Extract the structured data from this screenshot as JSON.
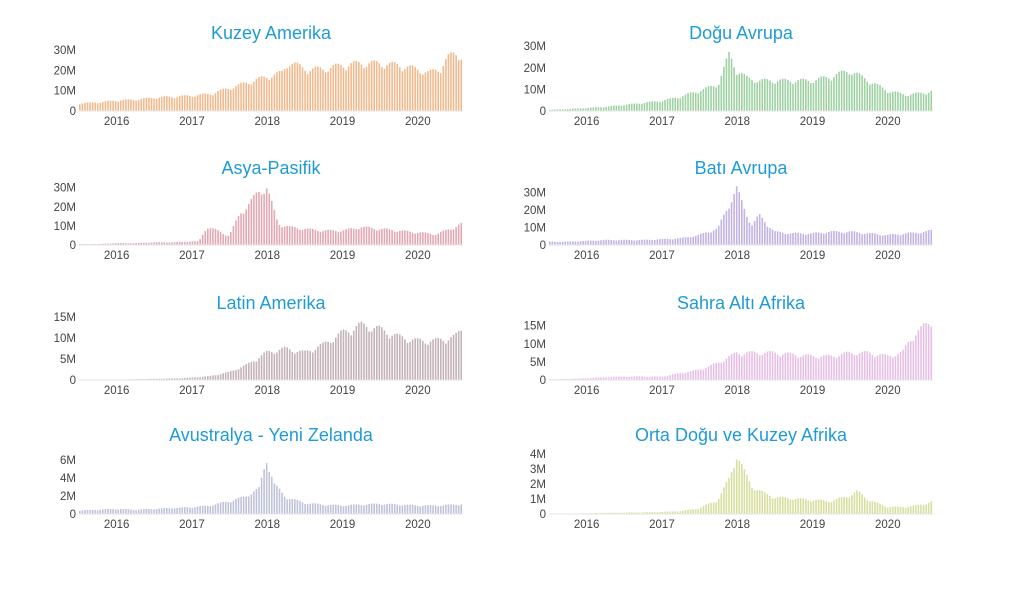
{
  "title_color": "#1f9bd7",
  "chart_data": [
    {
      "type": "bar",
      "title": "Kuzey Amerika",
      "color": "#f2b98c",
      "x_ticks": [
        "2016",
        "2017",
        "2018",
        "2019",
        "2020"
      ],
      "y_ticks": [
        "0",
        "10M",
        "20M",
        "30M"
      ],
      "ylim": [
        0,
        33
      ],
      "unit": "M",
      "x_range": [
        2015.5,
        2020.6
      ],
      "x": [
        2015.5,
        2015.75,
        2016.0,
        2016.25,
        2016.5,
        2016.75,
        2017.0,
        2017.25,
        2017.5,
        2017.75,
        2018.0,
        2018.2,
        2018.3,
        2018.5,
        2018.75,
        2019.0,
        2019.25,
        2019.5,
        2019.75,
        2020.0,
        2020.15,
        2020.3,
        2020.4,
        2020.5,
        2020.6
      ],
      "values": [
        4,
        4.5,
        5.5,
        6,
        7,
        7.5,
        8,
        9,
        12,
        15,
        18,
        20,
        26,
        22,
        22,
        24,
        25,
        25,
        24,
        22,
        20,
        22,
        28,
        30,
        29
      ]
    },
    {
      "type": "bar",
      "title": "Doğu Avrupa",
      "color": "#9fd1a3",
      "x_ticks": [
        "2016",
        "2017",
        "2018",
        "2019",
        "2020"
      ],
      "y_ticks": [
        "0",
        "10M",
        "20M",
        "30M"
      ],
      "ylim": [
        0,
        31
      ],
      "unit": "M",
      "x_range": [
        2015.5,
        2020.6
      ],
      "x": [
        2015.5,
        2015.75,
        2016.0,
        2016.25,
        2016.5,
        2016.75,
        2017.0,
        2017.25,
        2017.5,
        2017.75,
        2017.9,
        2018.0,
        2018.15,
        2018.3,
        2018.5,
        2018.75,
        2019.0,
        2019.25,
        2019.5,
        2019.65,
        2019.8,
        2020.0,
        2020.25,
        2020.5,
        2020.6
      ],
      "values": [
        0.5,
        1,
        1.5,
        2,
        3,
        4,
        5,
        7,
        10,
        13,
        28,
        20,
        16,
        15,
        15,
        15,
        15,
        17,
        20,
        17,
        14,
        10,
        8,
        9,
        10
      ]
    },
    {
      "type": "bar",
      "title": "Asya-Pasifik",
      "color": "#e3a8b2",
      "x_ticks": [
        "2016",
        "2017",
        "2018",
        "2019",
        "2020"
      ],
      "y_ticks": [
        "0",
        "10M",
        "20M",
        "30M"
      ],
      "ylim": [
        0,
        34
      ],
      "unit": "M",
      "x_range": [
        2015.5,
        2020.6
      ],
      "x": [
        2015.5,
        2015.75,
        2016.0,
        2016.25,
        2016.5,
        2016.75,
        2017.0,
        2017.1,
        2017.2,
        2017.35,
        2017.5,
        2017.65,
        2017.75,
        2017.9,
        2018.0,
        2018.15,
        2018.3,
        2018.5,
        2018.75,
        2019.0,
        2019.25,
        2019.5,
        2019.75,
        2020.0,
        2020.25,
        2020.5,
        2020.6
      ],
      "values": [
        0.5,
        0.5,
        1,
        1,
        1.5,
        1.5,
        2,
        2,
        10,
        8,
        5,
        18,
        22,
        30,
        32,
        12,
        10,
        9,
        8,
        8,
        10,
        9,
        8,
        7,
        6,
        10,
        12
      ]
    },
    {
      "type": "bar",
      "title": "Batı Avrupa",
      "color": "#c2b3e3",
      "x_ticks": [
        "2016",
        "2017",
        "2018",
        "2019",
        "2020"
      ],
      "y_ticks": [
        "0",
        "10M",
        "20M",
        "30M"
      ],
      "ylim": [
        0,
        37
      ],
      "unit": "M",
      "x_range": [
        2015.5,
        2020.6
      ],
      "x": [
        2015.5,
        2015.75,
        2016.0,
        2016.25,
        2016.5,
        2016.75,
        2017.0,
        2017.25,
        2017.5,
        2017.75,
        2017.9,
        2018.0,
        2018.1,
        2018.2,
        2018.3,
        2018.5,
        2018.75,
        2019.0,
        2019.25,
        2019.5,
        2019.75,
        2020.0,
        2020.25,
        2020.5,
        2020.6
      ],
      "values": [
        2,
        2,
        2.5,
        3,
        3,
        3,
        3.5,
        4,
        6,
        10,
        25,
        34,
        22,
        12,
        18,
        8,
        7,
        7,
        8,
        8,
        7,
        6,
        7,
        8,
        9
      ]
    },
    {
      "type": "bar",
      "title": "Latin Amerika",
      "color": "#c4b3b8",
      "x_ticks": [
        "2016",
        "2017",
        "2018",
        "2019",
        "2020"
      ],
      "y_ticks": [
        "0",
        "5M",
        "10M",
        "15M"
      ],
      "ylim": [
        0,
        16
      ],
      "unit": "M",
      "x_range": [
        2015.5,
        2020.6
      ],
      "x": [
        2015.5,
        2015.75,
        2016.0,
        2016.25,
        2016.5,
        2016.75,
        2017.0,
        2017.25,
        2017.5,
        2017.75,
        2018.0,
        2018.25,
        2018.5,
        2018.75,
        2019.0,
        2019.25,
        2019.5,
        2019.75,
        2020.0,
        2020.25,
        2020.5,
        2020.6
      ],
      "values": [
        0.1,
        0.1,
        0.1,
        0.2,
        0.3,
        0.4,
        0.6,
        1,
        2,
        4,
        7,
        8,
        7,
        9,
        12,
        14,
        13,
        11,
        10,
        10,
        11,
        13
      ]
    },
    {
      "type": "bar",
      "title": "Sahra Altı Afrika",
      "color": "#e7bfe6",
      "x_ticks": [
        "2016",
        "2017",
        "2018",
        "2019",
        "2020"
      ],
      "y_ticks": [
        "0",
        "5M",
        "10M",
        "15M"
      ],
      "ylim": [
        0,
        18.5
      ],
      "unit": "M",
      "x_range": [
        2015.5,
        2020.6
      ],
      "x": [
        2015.5,
        2015.75,
        2016.0,
        2016.25,
        2016.5,
        2016.75,
        2017.0,
        2017.25,
        2017.5,
        2017.75,
        2018.0,
        2018.25,
        2018.5,
        2018.75,
        2019.0,
        2019.25,
        2019.5,
        2019.75,
        2020.0,
        2020.2,
        2020.3,
        2020.45,
        2020.6
      ],
      "values": [
        0.2,
        0.3,
        0.5,
        0.8,
        1,
        1,
        1,
        2,
        3,
        5,
        8,
        8,
        8,
        7.5,
        7,
        7,
        8,
        8,
        7,
        8,
        12,
        15,
        18
      ]
    },
    {
      "type": "bar",
      "title": "Avustralya - Yeni Zelanda",
      "color": "#bfc3d8",
      "x_ticks": [
        "2016",
        "2017",
        "2018",
        "2019",
        "2020"
      ],
      "y_ticks": [
        "0",
        "2M",
        "4M",
        "6M"
      ],
      "ylim": [
        0,
        7.3
      ],
      "unit": "M",
      "x_range": [
        2015.5,
        2020.6
      ],
      "x": [
        2015.5,
        2015.75,
        2016.0,
        2016.25,
        2016.5,
        2016.75,
        2017.0,
        2017.25,
        2017.5,
        2017.7,
        2017.9,
        2018.0,
        2018.1,
        2018.25,
        2018.5,
        2018.75,
        2019.0,
        2019.25,
        2019.5,
        2019.75,
        2020.0,
        2020.25,
        2020.5,
        2020.6
      ],
      "values": [
        0.4,
        0.5,
        0.6,
        0.5,
        0.6,
        0.7,
        0.8,
        1,
        1.5,
        2,
        3,
        6.5,
        3.5,
        2,
        1.3,
        1.1,
        1,
        1.1,
        1.2,
        1.1,
        1,
        1,
        1.1,
        1.2
      ]
    },
    {
      "type": "bar",
      "title": "Orta Doğu ve Kuzey Afrika",
      "color": "#d8df9e",
      "x_ticks": [
        "2016",
        "2017",
        "2018",
        "2019",
        "2020"
      ],
      "y_ticks": [
        "0",
        "1M",
        "2M",
        "3M",
        "4M"
      ],
      "ylim": [
        0,
        4.4
      ],
      "unit": "M",
      "x_range": [
        2015.5,
        2020.6
      ],
      "x": [
        2015.5,
        2015.75,
        2016.0,
        2016.25,
        2016.5,
        2016.75,
        2017.0,
        2017.25,
        2017.5,
        2017.75,
        2017.9,
        2018.0,
        2018.1,
        2018.2,
        2018.35,
        2018.5,
        2018.75,
        2019.0,
        2019.25,
        2019.5,
        2019.6,
        2019.75,
        2020.0,
        2020.25,
        2020.5,
        2020.6
      ],
      "values": [
        0.02,
        0.03,
        0.05,
        0.08,
        0.1,
        0.12,
        0.15,
        0.2,
        0.4,
        1,
        2.5,
        4.2,
        3,
        2,
        1.5,
        1.2,
        1.1,
        1,
        0.9,
        1.3,
        1.6,
        1,
        0.5,
        0.5,
        0.7,
        0.9
      ]
    }
  ]
}
